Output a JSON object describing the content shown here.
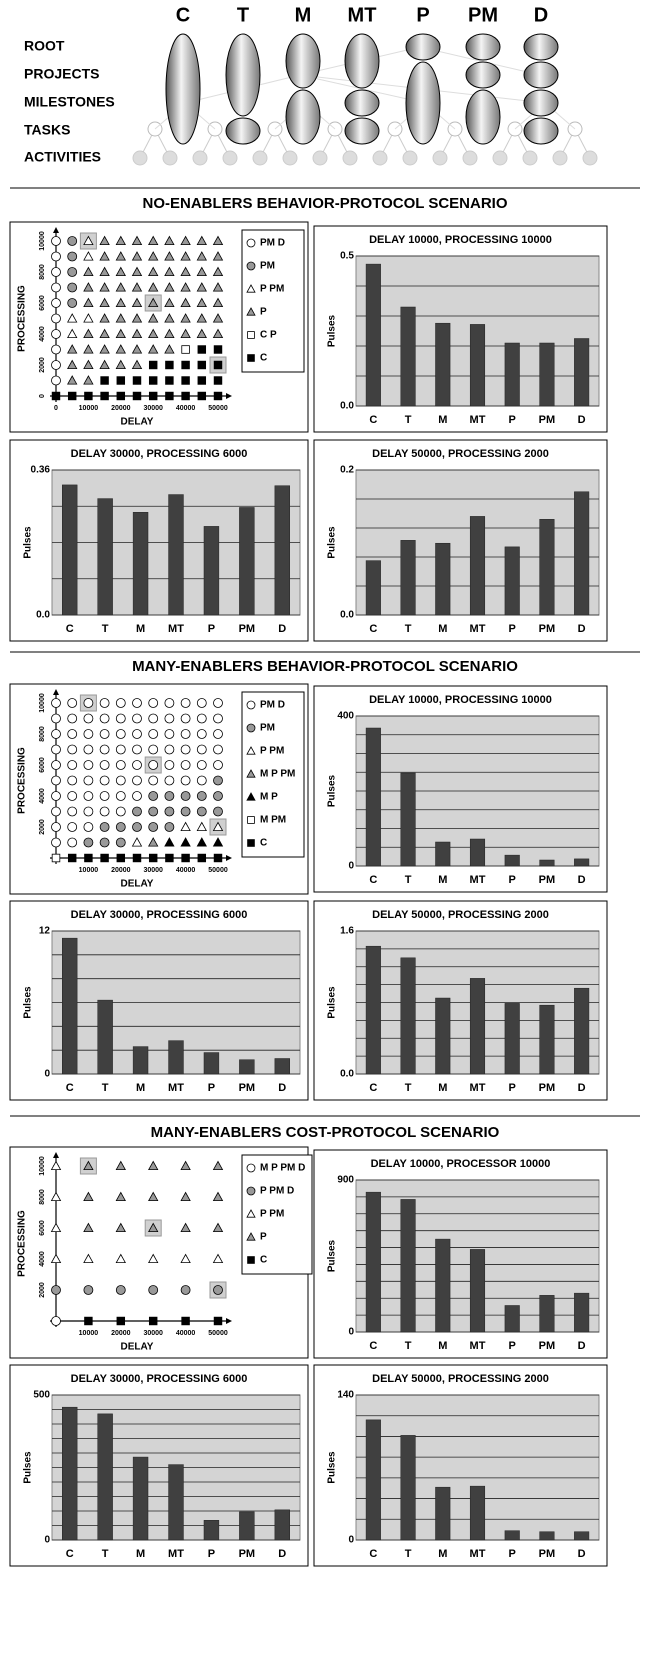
{
  "diagram": {
    "columns": [
      "C",
      "T",
      "M",
      "MT",
      "P",
      "PM",
      "D"
    ],
    "rows": [
      "ROOT",
      "PROJECTS",
      "MILESTONES",
      "TASKS",
      "ACTIVITIES"
    ]
  },
  "section_titles": [
    "NO-ENABLERS BEHAVIOR-PROTOCOL SCENARIO",
    "MANY-ENABLERS BEHAVIOR-PROTOCOL SCENARIO",
    "MANY-ENABLERS COST-PROTOCOL SCENARIO"
  ],
  "chart_data": [
    {
      "type": "scatter",
      "xlabel": "DELAY",
      "ylabel": "PROCESSING",
      "xlim": [
        0,
        50000
      ],
      "ylim": [
        0,
        10000
      ],
      "xticks": [
        0,
        10000,
        20000,
        30000,
        40000,
        50000
      ],
      "yticks": [
        0,
        2000,
        4000,
        6000,
        8000,
        10000
      ],
      "x_values": [
        0,
        5000,
        10000,
        15000,
        20000,
        25000,
        30000,
        35000,
        40000,
        45000,
        50000
      ],
      "y_values": [
        10000,
        9000,
        8000,
        7000,
        6000,
        5000,
        4000,
        3000,
        2000,
        1000,
        0
      ],
      "series": [
        {
          "name": "PM D",
          "marker": "circle",
          "color": "#ffffff"
        },
        {
          "name": "PM",
          "marker": "circle",
          "color": "#999999"
        },
        {
          "name": "P PM",
          "marker": "triangle",
          "color": "#ffffff"
        },
        {
          "name": "P",
          "marker": "triangle",
          "color": "#999999"
        },
        {
          "name": "C P",
          "marker": "square",
          "color": "#ffffff"
        },
        {
          "name": "C",
          "marker": "square",
          "color": "#000000"
        }
      ],
      "cells": [
        [
          0,
          1,
          2,
          3,
          3,
          3,
          3,
          3,
          3,
          3,
          3
        ],
        [
          0,
          1,
          2,
          3,
          3,
          3,
          3,
          3,
          3,
          3,
          3
        ],
        [
          0,
          1,
          3,
          3,
          3,
          3,
          3,
          3,
          3,
          3,
          3
        ],
        [
          0,
          1,
          3,
          3,
          3,
          3,
          3,
          3,
          3,
          3,
          3
        ],
        [
          0,
          1,
          3,
          3,
          3,
          3,
          3,
          3,
          3,
          3,
          3
        ],
        [
          0,
          2,
          2,
          3,
          3,
          3,
          3,
          3,
          3,
          3,
          3
        ],
        [
          0,
          2,
          3,
          3,
          3,
          3,
          3,
          3,
          3,
          3,
          3
        ],
        [
          0,
          3,
          3,
          3,
          3,
          3,
          3,
          3,
          4,
          5,
          5
        ],
        [
          0,
          3,
          3,
          3,
          3,
          3,
          5,
          5,
          5,
          5,
          5
        ],
        [
          0,
          3,
          3,
          5,
          5,
          5,
          5,
          5,
          5,
          5,
          5
        ],
        [
          5,
          5,
          5,
          5,
          5,
          5,
          5,
          5,
          5,
          5,
          5
        ]
      ],
      "highlights": [
        [
          10000,
          10000
        ],
        [
          30000,
          6000
        ],
        [
          50000,
          2000
        ]
      ]
    },
    {
      "type": "bar",
      "title": "DELAY 10000, PROCESSING 10000",
      "ylabel": "Pulses",
      "categories": [
        "C",
        "T",
        "M",
        "MT",
        "P",
        "PM",
        "D"
      ],
      "values": [
        0.473,
        0.33,
        0.276,
        0.272,
        0.21,
        0.21,
        0.225
      ],
      "color": "#404040",
      "ylim": [
        0,
        0.5
      ],
      "yticks": [
        {
          "value": 0,
          "label": "0.0"
        },
        0.5
      ],
      "minor_yticks": [
        0.1,
        0.2,
        0.3,
        0.4
      ]
    },
    {
      "type": "bar",
      "title": "DELAY 30000, PROCESSING 6000",
      "ylabel": "Pulses",
      "categories": [
        "C",
        "T",
        "M",
        "MT",
        "P",
        "PM",
        "D"
      ],
      "values": [
        0.323,
        0.289,
        0.255,
        0.299,
        0.22,
        0.267,
        0.321
      ],
      "color": "#404040",
      "ylim": [
        0,
        0.36
      ],
      "yticks": [
        {
          "value": 0,
          "label": "0.0"
        },
        0.36
      ],
      "minor_yticks": [
        0.09,
        0.18,
        0.27
      ]
    },
    {
      "type": "bar",
      "title": "DELAY 50000, PROCESSING 2000",
      "ylabel": "Pulses",
      "categories": [
        "C",
        "T",
        "M",
        "MT",
        "P",
        "PM",
        "D"
      ],
      "values": [
        0.075,
        0.103,
        0.099,
        0.136,
        0.094,
        0.132,
        0.17
      ],
      "color": "#404040",
      "ylim": [
        0,
        0.2
      ],
      "yticks": [
        {
          "value": 0,
          "label": "0.0"
        },
        0.2
      ],
      "minor_yticks": [
        0.04,
        0.08,
        0.12,
        0.16
      ]
    },
    {
      "type": "scatter",
      "xlabel": "DELAY",
      "ylabel": "PROCESSING",
      "xlim": [
        0,
        50000
      ],
      "ylim": [
        0,
        10000
      ],
      "xticks": [
        10000,
        20000,
        30000,
        40000,
        50000
      ],
      "yticks": [
        2000,
        4000,
        6000,
        8000,
        10000
      ],
      "x_values": [
        0,
        5000,
        10000,
        15000,
        20000,
        25000,
        30000,
        35000,
        40000,
        45000,
        50000
      ],
      "y_values": [
        10000,
        9000,
        8000,
        7000,
        6000,
        5000,
        4000,
        3000,
        2000,
        1000,
        0
      ],
      "series": [
        {
          "name": "PM D",
          "marker": "circle",
          "color": "#ffffff"
        },
        {
          "name": "PM",
          "marker": "circle",
          "color": "#999999"
        },
        {
          "name": "P PM",
          "marker": "triangle",
          "color": "#ffffff"
        },
        {
          "name": "M P PM",
          "marker": "triangle",
          "color": "#999999"
        },
        {
          "name": "M P",
          "marker": "triangle",
          "color": "#000000"
        },
        {
          "name": "M PM",
          "marker": "square",
          "color": "#ffffff"
        },
        {
          "name": "C",
          "marker": "square",
          "color": "#000000"
        }
      ],
      "cells": [
        [
          0,
          0,
          0,
          0,
          0,
          0,
          0,
          0,
          0,
          0,
          0
        ],
        [
          0,
          0,
          0,
          0,
          0,
          0,
          0,
          0,
          0,
          0,
          0
        ],
        [
          0,
          0,
          0,
          0,
          0,
          0,
          0,
          0,
          0,
          0,
          0
        ],
        [
          0,
          0,
          0,
          0,
          0,
          0,
          0,
          0,
          0,
          0,
          0
        ],
        [
          0,
          0,
          0,
          0,
          0,
          0,
          0,
          0,
          0,
          0,
          0
        ],
        [
          0,
          0,
          0,
          0,
          0,
          0,
          0,
          0,
          0,
          0,
          1
        ],
        [
          0,
          0,
          0,
          0,
          0,
          0,
          1,
          1,
          1,
          1,
          1
        ],
        [
          0,
          0,
          0,
          0,
          0,
          1,
          1,
          1,
          1,
          1,
          1
        ],
        [
          0,
          0,
          0,
          1,
          1,
          1,
          1,
          1,
          2,
          2,
          2
        ],
        [
          0,
          0,
          1,
          1,
          1,
          2,
          3,
          4,
          4,
          4,
          4
        ],
        [
          5,
          6,
          6,
          6,
          6,
          6,
          6,
          6,
          6,
          6,
          6
        ]
      ],
      "highlights": [
        [
          10000,
          10000
        ],
        [
          30000,
          6000
        ],
        [
          50000,
          2000
        ]
      ]
    },
    {
      "type": "bar",
      "title": "DELAY 10000, PROCESSING 10000",
      "ylabel": "Pulses",
      "categories": [
        "C",
        "T",
        "M",
        "MT",
        "P",
        "PM",
        "D"
      ],
      "values": [
        368,
        248,
        64,
        72,
        29,
        16,
        19
      ],
      "color": "#404040",
      "ylim": [
        0,
        400
      ],
      "yticks": [
        0,
        400
      ],
      "minor_yticks": [
        50,
        100,
        150,
        200,
        250,
        300,
        350
      ]
    },
    {
      "type": "bar",
      "title": "DELAY 30000, PROCESSING 6000",
      "ylabel": "Pulses",
      "categories": [
        "C",
        "T",
        "M",
        "MT",
        "P",
        "PM",
        "D"
      ],
      "values": [
        11.4,
        6.2,
        2.3,
        2.8,
        1.8,
        1.2,
        1.3
      ],
      "color": "#404040",
      "ylim": [
        0,
        12
      ],
      "yticks": [
        0,
        12
      ],
      "minor_yticks": [
        2,
        4,
        6,
        8,
        10
      ]
    },
    {
      "type": "bar",
      "title": "DELAY 50000, PROCESSING 2000",
      "ylabel": "Pulses",
      "categories": [
        "C",
        "T",
        "M",
        "MT",
        "P",
        "PM",
        "D"
      ],
      "values": [
        1.43,
        1.3,
        0.85,
        1.07,
        0.79,
        0.77,
        0.96
      ],
      "color": "#404040",
      "ylim": [
        0,
        1.6
      ],
      "yticks": [
        {
          "value": 0,
          "label": "0.0"
        },
        1.6
      ],
      "minor_yticks": [
        0.2,
        0.4,
        0.6,
        0.8,
        1,
        1.2,
        1.4
      ]
    },
    {
      "type": "scatter",
      "xlabel": "DELAY",
      "ylabel": "PROCESSING",
      "xlim": [
        0,
        50000
      ],
      "ylim": [
        0,
        10000
      ],
      "xticks": [
        10000,
        20000,
        30000,
        40000,
        50000
      ],
      "yticks": [
        2000,
        4000,
        6000,
        8000,
        10000
      ],
      "x_values": [
        0,
        10000,
        20000,
        30000,
        40000,
        50000
      ],
      "y_values": [
        10000,
        8000,
        6000,
        4000,
        2000,
        0
      ],
      "series": [
        {
          "name": "M P PM D",
          "marker": "circle",
          "color": "#ffffff"
        },
        {
          "name": "P PM D",
          "marker": "circle",
          "color": "#999999"
        },
        {
          "name": "P PM",
          "marker": "triangle",
          "color": "#ffffff"
        },
        {
          "name": "P",
          "marker": "triangle",
          "color": "#999999"
        },
        {
          "name": "C",
          "marker": "square",
          "color": "#000000"
        }
      ],
      "cells": [
        [
          2,
          3,
          3,
          3,
          3,
          3
        ],
        [
          2,
          3,
          3,
          3,
          3,
          3
        ],
        [
          2,
          3,
          3,
          3,
          3,
          3
        ],
        [
          2,
          2,
          2,
          2,
          2,
          2
        ],
        [
          1,
          1,
          1,
          1,
          1,
          1
        ],
        [
          0,
          4,
          4,
          4,
          4,
          4
        ]
      ],
      "highlights": [
        [
          10000,
          10000
        ],
        [
          30000,
          6000
        ],
        [
          50000,
          2000
        ]
      ]
    },
    {
      "type": "bar",
      "title": "DELAY 10000, PROCESSOR 10000",
      "ylabel": "Pulses",
      "categories": [
        "C",
        "T",
        "M",
        "MT",
        "P",
        "PM",
        "D"
      ],
      "values": [
        828,
        785,
        550,
        489,
        157,
        217,
        230
      ],
      "color": "#404040",
      "ylim": [
        0,
        900
      ],
      "yticks": [
        0,
        900
      ],
      "minor_yticks": [
        100,
        200,
        300,
        400,
        500,
        600,
        700,
        800
      ]
    },
    {
      "type": "bar",
      "title": "DELAY 30000, PROCESSING 6000",
      "ylabel": "Pulses",
      "categories": [
        "C",
        "T",
        "M",
        "MT",
        "P",
        "PM",
        "D"
      ],
      "values": [
        458,
        435,
        286,
        260,
        68,
        97,
        104
      ],
      "color": "#404040",
      "ylim": [
        0,
        500
      ],
      "yticks": [
        0,
        500
      ],
      "minor_yticks": [
        50,
        100,
        150,
        200,
        250,
        300,
        350,
        400,
        450
      ]
    },
    {
      "type": "bar",
      "title": "DELAY 50000, PROCESSING 2000",
      "ylabel": "Pulses",
      "categories": [
        "C",
        "T",
        "M",
        "MT",
        "P",
        "PM",
        "D"
      ],
      "values": [
        116,
        101,
        51,
        52,
        9,
        8,
        8
      ],
      "color": "#404040",
      "ylim": [
        0,
        140
      ],
      "yticks": [
        0,
        140
      ],
      "minor_yticks": [
        20,
        40,
        60,
        80,
        100,
        120
      ]
    }
  ]
}
